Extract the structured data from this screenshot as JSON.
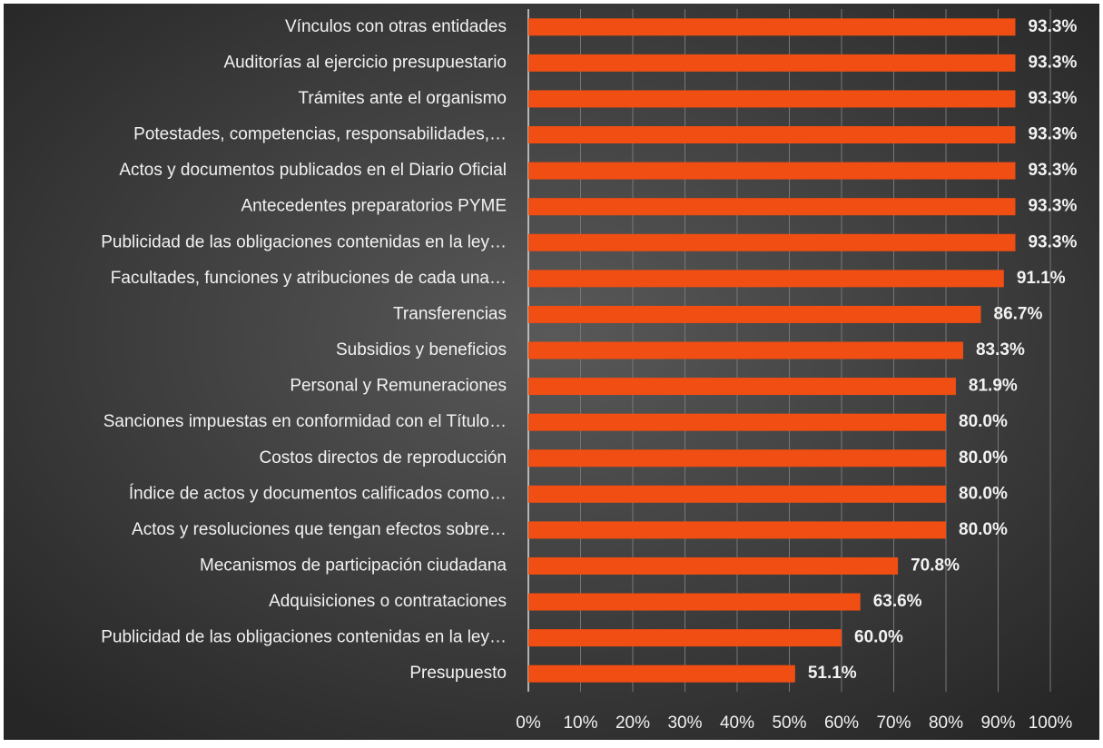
{
  "chart_data": {
    "type": "bar",
    "orientation": "horizontal",
    "categories": [
      "Vínculos con otras entidades",
      "Auditorías al ejercicio presupuestario",
      "Trámites ante el organismo",
      "Potestades, competencias, responsabilidades,…",
      "Actos y documentos publicados en el Diario Oficial",
      "Antecedentes preparatorios PYME",
      "Publicidad de las obligaciones contenidas en la ley…",
      "Facultades, funciones y atribuciones de cada una…",
      "Transferencias",
      "Subsidios y beneficios",
      "Personal y Remuneraciones",
      "Sanciones impuestas en conformidad con el Título…",
      "Costos directos de reproducción",
      "Índice de actos y documentos calificados como…",
      "Actos y resoluciones que tengan efectos sobre…",
      "Mecanismos de participación ciudadana",
      "Adquisiciones o contrataciones",
      "Publicidad de las obligaciones contenidas en la ley…",
      "Presupuesto"
    ],
    "values": [
      93.3,
      93.3,
      93.3,
      93.3,
      93.3,
      93.3,
      93.3,
      91.1,
      86.7,
      83.3,
      81.9,
      80.0,
      80.0,
      80.0,
      80.0,
      70.8,
      63.6,
      60.0,
      51.1
    ],
    "value_labels": [
      "93.3%",
      "93.3%",
      "93.3%",
      "93.3%",
      "93.3%",
      "93.3%",
      "93.3%",
      "91.1%",
      "86.7%",
      "83.3%",
      "81.9%",
      "80.0%",
      "80.0%",
      "80.0%",
      "80.0%",
      "70.8%",
      "63.6%",
      "60.0%",
      "51.1%"
    ],
    "color": "#f04e13",
    "xlim": [
      0,
      100
    ],
    "xticks": [
      {
        "value": 0,
        "label": "0%"
      },
      {
        "value": 10,
        "label": "10%"
      },
      {
        "value": 20,
        "label": "20%"
      },
      {
        "value": 30,
        "label": "30%"
      },
      {
        "value": 40,
        "label": "40%"
      },
      {
        "value": 50,
        "label": "50%"
      },
      {
        "value": 60,
        "label": "60%"
      },
      {
        "value": 70,
        "label": "70%"
      },
      {
        "value": 80,
        "label": "80%"
      },
      {
        "value": 90,
        "label": "90%"
      },
      {
        "value": 100,
        "label": "100%"
      }
    ],
    "grid": true
  }
}
